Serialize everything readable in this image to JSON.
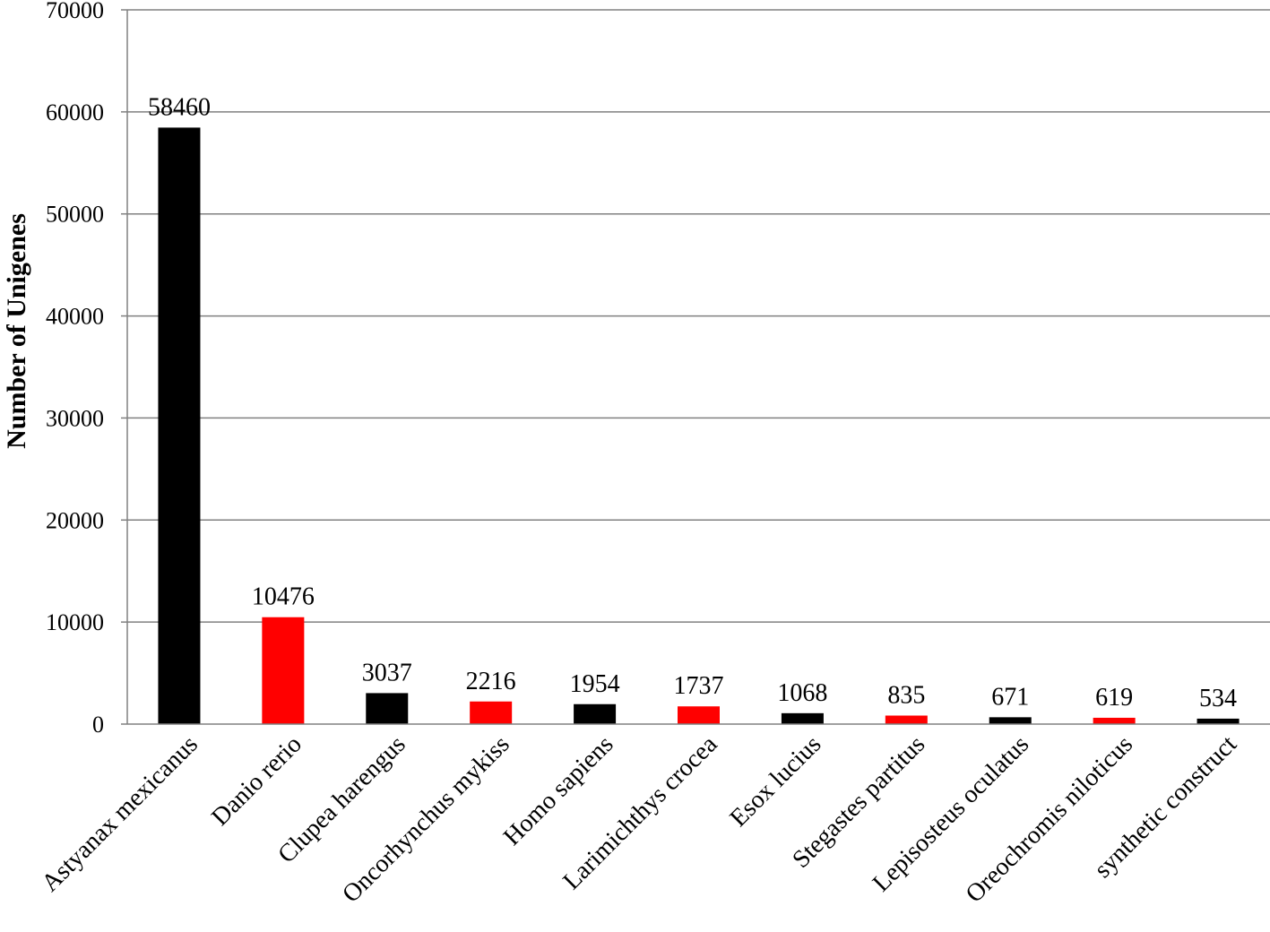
{
  "chart_data": {
    "type": "bar",
    "title": "",
    "xlabel": "",
    "ylabel": "Number of Unigenes",
    "ylim": [
      0,
      70000
    ],
    "yticks": [
      0,
      10000,
      20000,
      30000,
      40000,
      50000,
      60000,
      70000
    ],
    "grid": true,
    "legend": "none",
    "categories": [
      "Astyanax mexicanus",
      "Danio rerio",
      "Clupea harengus",
      "Oncorhynchus mykiss",
      "Homo sapiens",
      "Larimichthys crocea",
      "Esox lucius",
      "Stegastes partitus",
      "Lepisosteus oculatus",
      "Oreochromis niloticus",
      "synthetic construct"
    ],
    "values": [
      58460,
      10476,
      3037,
      2216,
      1954,
      1737,
      1068,
      835,
      671,
      619,
      534
    ],
    "bar_colors": [
      "#000000",
      "#ff0000",
      "#000000",
      "#ff0000",
      "#000000",
      "#ff0000",
      "#000000",
      "#ff0000",
      "#000000",
      "#ff0000",
      "#000000"
    ],
    "gridline_color": "#808080"
  }
}
